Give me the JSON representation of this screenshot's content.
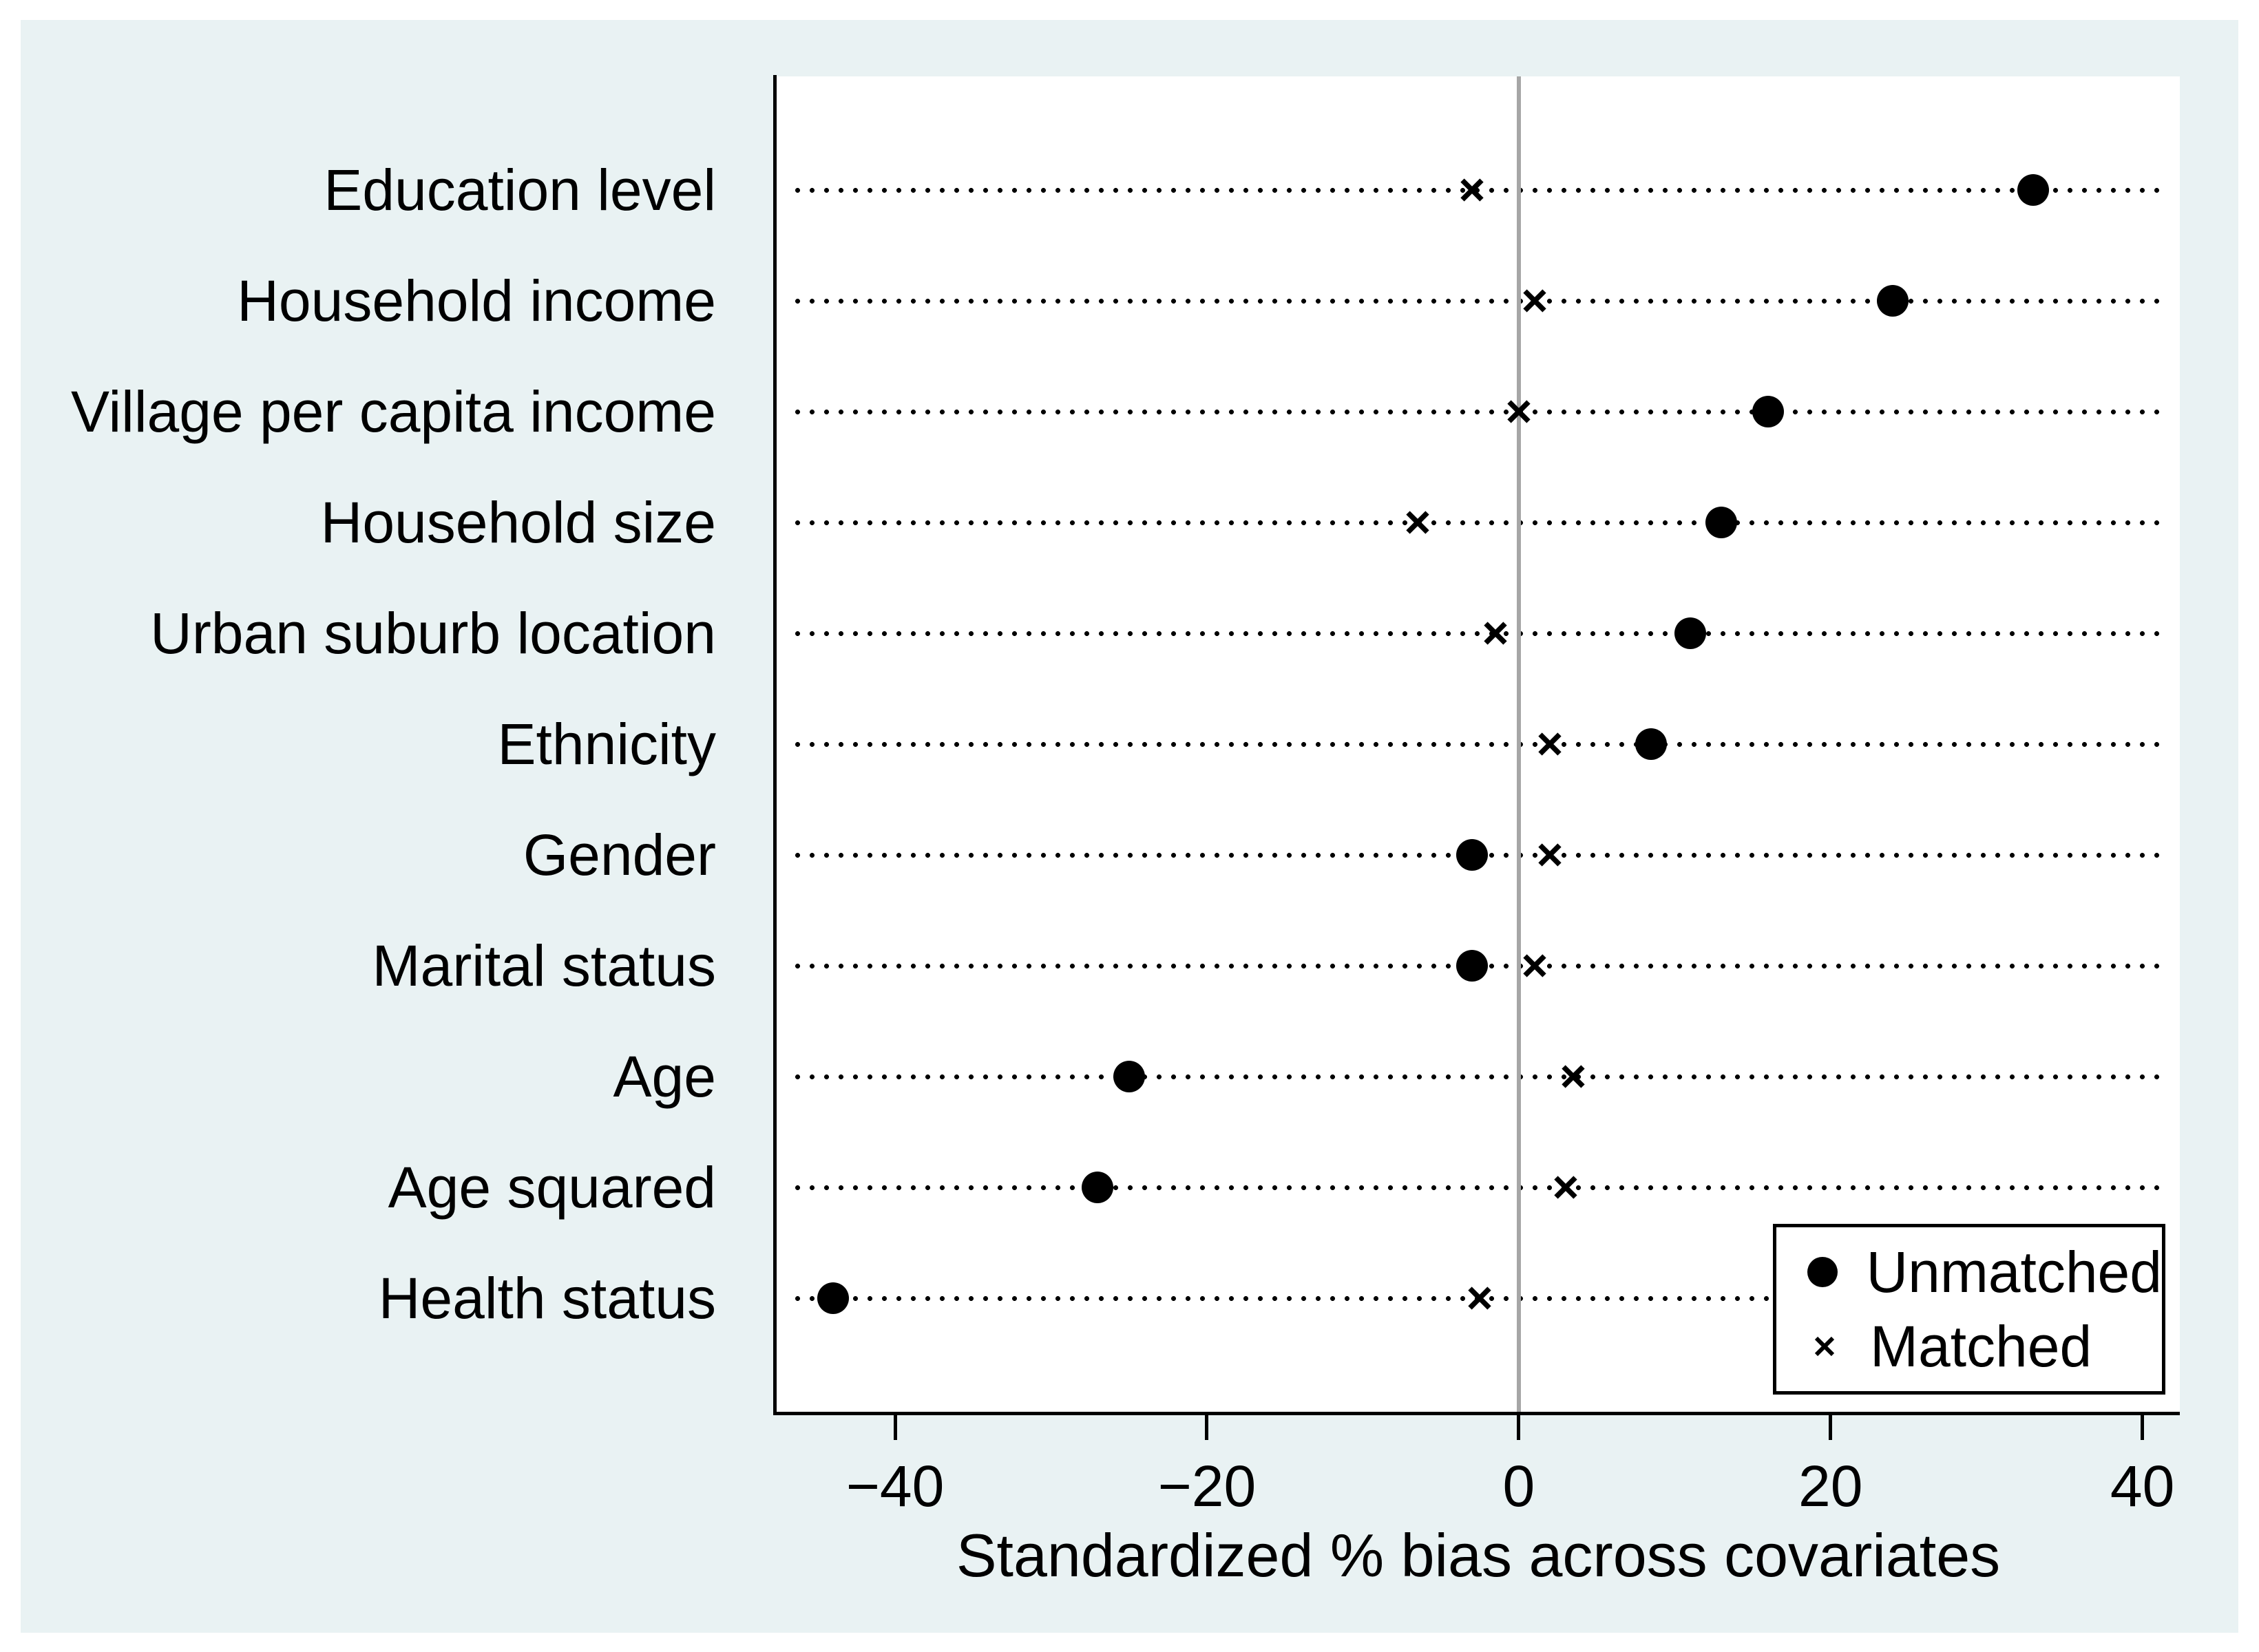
{
  "figure": {
    "background_color": "#e9f2f3",
    "plot_background_color": "#ffffff",
    "axis_color": "#000000",
    "zero_line_color": "#a6a6a6",
    "marker_color": "#000000"
  },
  "chart_data": {
    "type": "scatter",
    "title": "",
    "xlabel": "Standardized % bias across covariates",
    "ylabel": "",
    "xlim": [
      -47.6,
      42.4
    ],
    "grid": "dotted horizontal guide per category, vertical reference line at 0",
    "legend_position": "bottom-right inside plot",
    "xticks": [
      {
        "value": -40,
        "label": "−40"
      },
      {
        "value": -20,
        "label": "−20"
      },
      {
        "value": 0,
        "label": "0"
      },
      {
        "value": 20,
        "label": "20"
      },
      {
        "value": 40,
        "label": "40"
      }
    ],
    "categories": [
      "Education level",
      "Household income",
      "Village per capita income",
      "Household size",
      "Urban suburb location",
      "Ethnicity",
      "Gender",
      "Marital status",
      "Age",
      "Age squared",
      "Health status"
    ],
    "series": [
      {
        "name": "Unmatched",
        "marker": "circle",
        "values": [
          33,
          24,
          16,
          13,
          11,
          8.5,
          -3,
          -3,
          -25,
          -27,
          -44
        ]
      },
      {
        "name": "Matched",
        "marker": "x",
        "values": [
          -3,
          1,
          0,
          -6.5,
          -1.5,
          2,
          2,
          1,
          3.5,
          3,
          -2.5
        ]
      }
    ]
  }
}
